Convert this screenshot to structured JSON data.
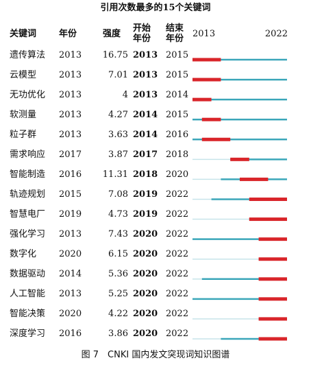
{
  "title": "引用次数最多的15个关键词",
  "header": {
    "keyword": "关键词",
    "year": "年份",
    "strength": "强度",
    "begin": "开始年份",
    "end": "结束年份"
  },
  "timeline": {
    "start": 2013,
    "end": 2022,
    "burst_color": "#d9252a",
    "active_color": "#3aa6b9",
    "idle_color": "#c7e4ea"
  },
  "rows": [
    {
      "keyword": "遗传算法",
      "year": 2013,
      "strength": 16.75,
      "begin": 2013,
      "end": 2015
    },
    {
      "keyword": "云模型",
      "year": 2013,
      "strength": 7.01,
      "begin": 2013,
      "end": 2015
    },
    {
      "keyword": "无功优化",
      "year": 2013,
      "strength": 4,
      "begin": 2013,
      "end": 2014
    },
    {
      "keyword": "软测量",
      "year": 2013,
      "strength": 4.27,
      "begin": 2014,
      "end": 2015
    },
    {
      "keyword": "粒子群",
      "year": 2013,
      "strength": 3.63,
      "begin": 2014,
      "end": 2016
    },
    {
      "keyword": "需求响应",
      "year": 2017,
      "strength": 3.87,
      "begin": 2017,
      "end": 2018
    },
    {
      "keyword": "智能制造",
      "year": 2016,
      "strength": 11.31,
      "begin": 2018,
      "end": 2020
    },
    {
      "keyword": "轨迹规划",
      "year": 2015,
      "strength": 7.08,
      "begin": 2019,
      "end": 2022
    },
    {
      "keyword": "智慧电厂",
      "year": 2019,
      "strength": 4.73,
      "begin": 2019,
      "end": 2022
    },
    {
      "keyword": "强化学习",
      "year": 2013,
      "strength": 7.43,
      "begin": 2020,
      "end": 2022
    },
    {
      "keyword": "数字化",
      "year": 2020,
      "strength": 6.15,
      "begin": 2020,
      "end": 2022
    },
    {
      "keyword": "数据驱动",
      "year": 2014,
      "strength": 5.36,
      "begin": 2020,
      "end": 2022
    },
    {
      "keyword": "人工智能",
      "year": 2013,
      "strength": 5.25,
      "begin": 2020,
      "end": 2022
    },
    {
      "keyword": "智能决策",
      "year": 2020,
      "strength": 4.22,
      "begin": 2020,
      "end": 2022
    },
    {
      "keyword": "深度学习",
      "year": 2016,
      "strength": 3.86,
      "begin": 2020,
      "end": 2022
    }
  ],
  "caption": "图 7　CNKI 国内发文突现词知识图谱"
}
